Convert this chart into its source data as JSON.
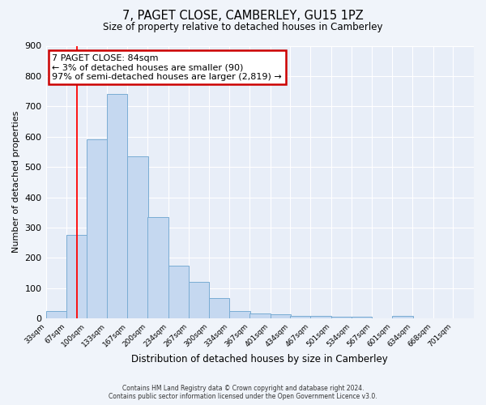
{
  "title": "7, PAGET CLOSE, CAMBERLEY, GU15 1PZ",
  "subtitle": "Size of property relative to detached houses in Camberley",
  "xlabel": "Distribution of detached houses by size in Camberley",
  "ylabel": "Number of detached properties",
  "bar_color": "#c5d8f0",
  "bar_edge_color": "#7aadd4",
  "background_color": "#e8eef8",
  "fig_background_color": "#f0f4fa",
  "grid_color": "#ffffff",
  "bin_labels": [
    "33sqm",
    "67sqm",
    "100sqm",
    "133sqm",
    "167sqm",
    "200sqm",
    "234sqm",
    "267sqm",
    "300sqm",
    "334sqm",
    "367sqm",
    "401sqm",
    "434sqm",
    "467sqm",
    "501sqm",
    "534sqm",
    "567sqm",
    "601sqm",
    "634sqm",
    "668sqm",
    "701sqm"
  ],
  "bar_heights": [
    25,
    275,
    590,
    740,
    535,
    335,
    175,
    120,
    68,
    25,
    15,
    13,
    8,
    7,
    6,
    5,
    0,
    8,
    0,
    0,
    0
  ],
  "bin_edges": [
    33,
    67,
    100,
    133,
    167,
    200,
    234,
    267,
    300,
    334,
    367,
    401,
    434,
    467,
    501,
    534,
    567,
    601,
    634,
    668,
    701
  ],
  "bin_width": 34,
  "ylim": [
    0,
    900
  ],
  "yticks": [
    0,
    100,
    200,
    300,
    400,
    500,
    600,
    700,
    800,
    900
  ],
  "red_line_x": 84,
  "annotation_title": "7 PAGET CLOSE: 84sqm",
  "annotation_line1": "← 3% of detached houses are smaller (90)",
  "annotation_line2": "97% of semi-detached houses are larger (2,819) →",
  "annotation_box_color": "#ffffff",
  "annotation_box_edge_color": "#cc0000",
  "footer_line1": "Contains HM Land Registry data © Crown copyright and database right 2024.",
  "footer_line2": "Contains public sector information licensed under the Open Government Licence v3.0."
}
